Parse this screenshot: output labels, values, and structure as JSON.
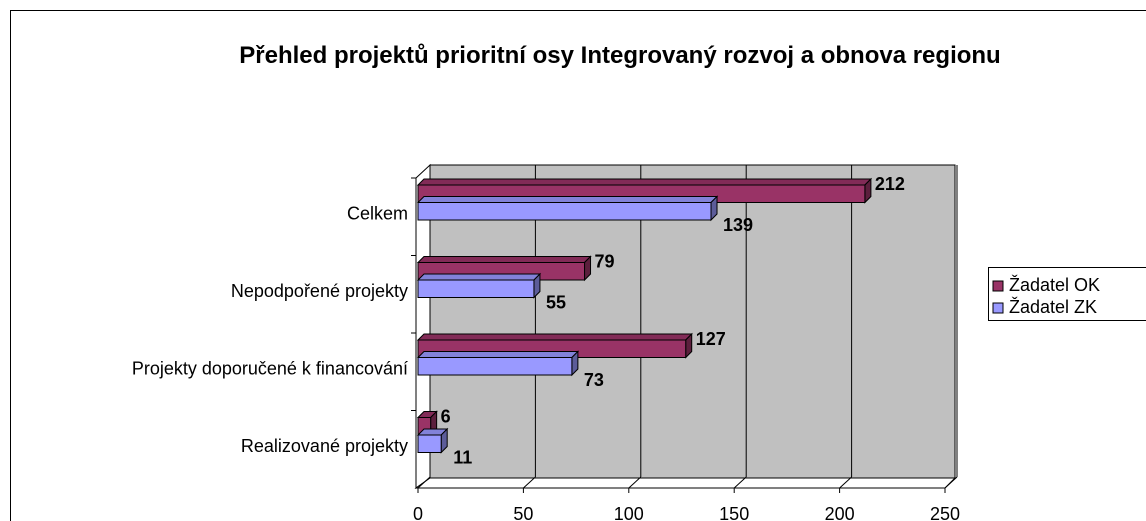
{
  "chart_data": {
    "type": "bar3d_horizontal",
    "title": "Přehled projektů prioritní osy Integrovaný rozvoj a obnova regionu",
    "categories": [
      "Celkem",
      "Nepodpořené projekty",
      "Projekty doporučené k financování",
      "Realizované projekty"
    ],
    "series": [
      {
        "name": "Žadatel OK",
        "color": "#993366",
        "values": [
          212,
          79,
          127,
          6
        ]
      },
      {
        "name": "Žadatel ZK",
        "color": "#9999ff",
        "values": [
          139,
          55,
          73,
          11
        ]
      }
    ],
    "xlim": [
      0,
      250
    ],
    "xticks": [
      0,
      50,
      100,
      150,
      200,
      250
    ],
    "grid": true,
    "legend": "right"
  }
}
